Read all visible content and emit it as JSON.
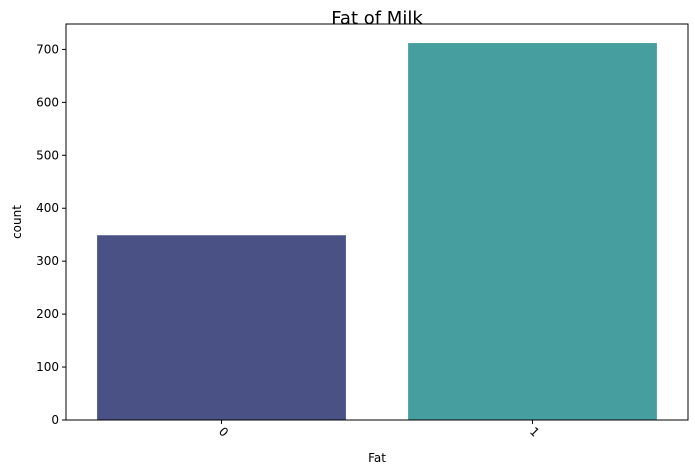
{
  "chart_data": {
    "type": "bar",
    "title": "Fat of Milk",
    "xlabel": "Fat",
    "ylabel": "count",
    "categories": [
      "0",
      "1"
    ],
    "values": [
      349,
      712
    ],
    "colors": [
      "#4a5285",
      "#479e9e"
    ],
    "ylim": [
      0,
      748
    ],
    "yticks": [
      0,
      100,
      200,
      300,
      400,
      500,
      600,
      700
    ],
    "xtick_rotation": 45,
    "grid": false,
    "legend": false
  }
}
